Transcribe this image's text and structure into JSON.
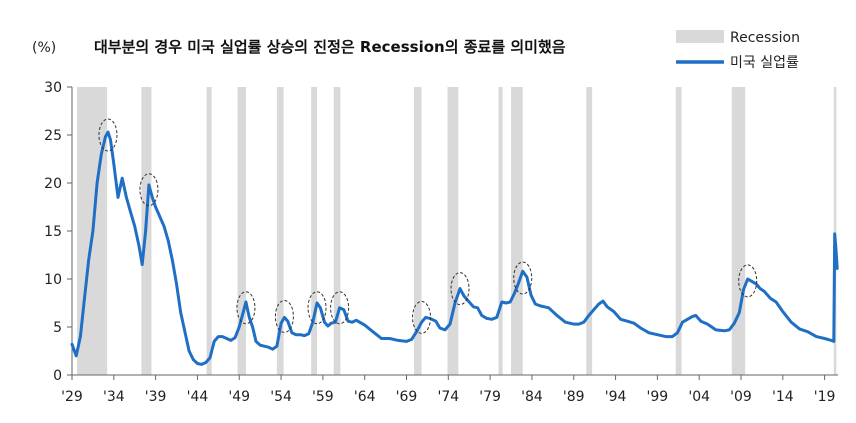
{
  "chart_data": {
    "type": "line",
    "title": "대부분의 경우 미국 실업률 상승의 진정은 Recession의 종료를 의미했음",
    "ylabel": "(%)",
    "ylim": [
      0,
      30
    ],
    "yticks": [
      0,
      5,
      10,
      15,
      20,
      25,
      30
    ],
    "xlim": [
      1929,
      2020.6
    ],
    "xticks": [
      {
        "year": 1929,
        "label": "'29"
      },
      {
        "year": 1934,
        "label": "'34"
      },
      {
        "year": 1939,
        "label": "'39"
      },
      {
        "year": 1944,
        "label": "'44"
      },
      {
        "year": 1949,
        "label": "'49"
      },
      {
        "year": 1954,
        "label": "'54"
      },
      {
        "year": 1959,
        "label": "'59"
      },
      {
        "year": 1964,
        "label": "'64"
      },
      {
        "year": 1969,
        "label": "'69"
      },
      {
        "year": 1974,
        "label": "'74"
      },
      {
        "year": 1979,
        "label": "'79"
      },
      {
        "year": 1984,
        "label": "'84"
      },
      {
        "year": 1989,
        "label": "'89"
      },
      {
        "year": 1994,
        "label": "'94"
      },
      {
        "year": 1999,
        "label": "'99"
      },
      {
        "year": 2004,
        "label": "'04"
      },
      {
        "year": 2009,
        "label": "'09"
      },
      {
        "year": 2014,
        "label": "'14"
      },
      {
        "year": 2019,
        "label": "'19"
      }
    ],
    "legend": {
      "position": "top-right",
      "items": [
        {
          "label": "Recession",
          "kind": "bar",
          "color": "#d9d9d9"
        },
        {
          "label": "미국 실업률",
          "kind": "line",
          "color": "#1f6fc5"
        }
      ]
    },
    "recessions": [
      [
        1929.6,
        1933.2
      ],
      [
        1937.3,
        1938.5
      ],
      [
        1945.1,
        1945.7
      ],
      [
        1948.8,
        1949.8
      ],
      [
        1953.5,
        1954.3
      ],
      [
        1957.6,
        1958.3
      ],
      [
        1960.3,
        1961.1
      ],
      [
        1969.9,
        1970.8
      ],
      [
        1973.9,
        1975.2
      ],
      [
        1980.0,
        1980.5
      ],
      [
        1981.5,
        1982.9
      ],
      [
        1990.5,
        1991.2
      ],
      [
        2001.2,
        2001.9
      ],
      [
        2007.9,
        2009.5
      ],
      [
        2020.1,
        2020.4
      ]
    ],
    "series": [
      {
        "name": "미국 실업률",
        "color": "#1f6fc5",
        "x": [
          1929.0,
          1929.5,
          1930.0,
          1930.5,
          1931.0,
          1931.5,
          1932.0,
          1932.5,
          1933.0,
          1933.3,
          1933.6,
          1934.0,
          1934.5,
          1935.0,
          1935.5,
          1936.0,
          1936.5,
          1937.0,
          1937.4,
          1937.8,
          1938.2,
          1938.6,
          1939.0,
          1939.5,
          1940.0,
          1940.5,
          1941.0,
          1941.5,
          1942.0,
          1942.5,
          1943.0,
          1943.5,
          1944.0,
          1944.5,
          1945.0,
          1945.5,
          1946.0,
          1946.5,
          1947.0,
          1947.5,
          1948.0,
          1948.5,
          1949.0,
          1949.5,
          1949.8,
          1950.2,
          1950.6,
          1951.0,
          1951.5,
          1952.0,
          1952.5,
          1953.0,
          1953.5,
          1954.0,
          1954.4,
          1954.8,
          1955.3,
          1955.8,
          1956.3,
          1956.8,
          1957.3,
          1957.8,
          1958.3,
          1958.7,
          1959.2,
          1959.6,
          1960.0,
          1960.5,
          1961.0,
          1961.5,
          1962.0,
          1962.5,
          1963.0,
          1964.0,
          1965.0,
          1966.0,
          1967.0,
          1968.0,
          1969.0,
          1969.6,
          1970.2,
          1970.8,
          1971.3,
          1971.8,
          1972.5,
          1973.0,
          1973.6,
          1974.2,
          1974.8,
          1975.4,
          1975.9,
          1976.5,
          1977.0,
          1977.5,
          1978.0,
          1978.6,
          1979.2,
          1979.8,
          1980.4,
          1980.9,
          1981.4,
          1981.9,
          1982.4,
          1982.9,
          1983.4,
          1983.9,
          1984.4,
          1985.0,
          1986.0,
          1987.0,
          1988.0,
          1989.0,
          1989.6,
          1990.2,
          1990.8,
          1991.4,
          1992.0,
          1992.5,
          1993.0,
          1993.8,
          1994.6,
          1995.4,
          1996.2,
          1997.0,
          1998.0,
          1999.0,
          2000.0,
          2000.8,
          2001.4,
          2002.0,
          2002.6,
          2003.2,
          2003.6,
          2004.2,
          2005.0,
          2006.0,
          2007.0,
          2007.6,
          2008.2,
          2008.8,
          2009.3,
          2009.8,
          2010.2,
          2010.8,
          2011.3,
          2011.8,
          2012.5,
          2013.2,
          2014.0,
          2015.0,
          2016.0,
          2017.0,
          2018.0,
          2019.0,
          2019.8,
          2020.1,
          2020.2,
          2020.35,
          2020.5
        ],
        "values": [
          3.2,
          2.0,
          4.0,
          8.0,
          12.0,
          15.0,
          20.0,
          23.0,
          24.8,
          25.3,
          24.5,
          22.0,
          18.5,
          20.5,
          18.5,
          17.0,
          15.5,
          13.5,
          11.5,
          15.0,
          19.8,
          18.5,
          17.5,
          16.5,
          15.5,
          14.0,
          12.0,
          9.5,
          6.5,
          4.5,
          2.5,
          1.6,
          1.2,
          1.1,
          1.3,
          1.8,
          3.5,
          4.0,
          4.0,
          3.8,
          3.6,
          3.9,
          5.0,
          6.6,
          7.6,
          6.0,
          5.0,
          3.5,
          3.1,
          3.0,
          2.9,
          2.7,
          3.0,
          5.4,
          6.0,
          5.6,
          4.4,
          4.2,
          4.2,
          4.1,
          4.3,
          5.5,
          7.5,
          7.0,
          5.5,
          5.1,
          5.4,
          5.5,
          7.0,
          6.8,
          5.6,
          5.5,
          5.7,
          5.2,
          4.5,
          3.8,
          3.8,
          3.6,
          3.5,
          3.7,
          4.5,
          5.5,
          6.0,
          5.9,
          5.6,
          4.9,
          4.7,
          5.3,
          7.5,
          9.0,
          8.2,
          7.6,
          7.1,
          7.0,
          6.2,
          5.9,
          5.8,
          6.0,
          7.6,
          7.5,
          7.6,
          8.5,
          9.6,
          10.8,
          10.2,
          8.3,
          7.4,
          7.2,
          7.0,
          6.2,
          5.5,
          5.3,
          5.3,
          5.5,
          6.2,
          6.8,
          7.4,
          7.7,
          7.1,
          6.6,
          5.8,
          5.6,
          5.4,
          4.9,
          4.4,
          4.2,
          4.0,
          4.0,
          4.4,
          5.5,
          5.8,
          6.1,
          6.2,
          5.6,
          5.3,
          4.7,
          4.6,
          4.7,
          5.4,
          6.5,
          8.9,
          10.0,
          9.8,
          9.5,
          9.0,
          8.7,
          8.0,
          7.6,
          6.6,
          5.5,
          4.8,
          4.5,
          4.0,
          3.8,
          3.6,
          3.5,
          14.7,
          13.2,
          11.1
        ]
      }
    ],
    "annotations": [
      {
        "type": "ellipse",
        "label": "peak",
        "x": 1933.3,
        "y": 25.0
      },
      {
        "type": "ellipse",
        "label": "peak",
        "x": 1938.2,
        "y": 19.3
      },
      {
        "type": "ellipse",
        "label": "peak",
        "x": 1949.8,
        "y": 7.0
      },
      {
        "type": "ellipse",
        "label": "peak",
        "x": 1954.4,
        "y": 6.1
      },
      {
        "type": "ellipse",
        "label": "peak",
        "x": 1958.3,
        "y": 7.0
      },
      {
        "type": "ellipse",
        "label": "peak",
        "x": 1961.0,
        "y": 7.0
      },
      {
        "type": "ellipse",
        "label": "peak",
        "x": 1970.8,
        "y": 6.0
      },
      {
        "type": "ellipse",
        "label": "peak",
        "x": 1975.4,
        "y": 9.0
      },
      {
        "type": "ellipse",
        "label": "peak",
        "x": 1982.9,
        "y": 10.1
      },
      {
        "type": "ellipse",
        "label": "peak",
        "x": 2009.8,
        "y": 9.8
      }
    ]
  }
}
